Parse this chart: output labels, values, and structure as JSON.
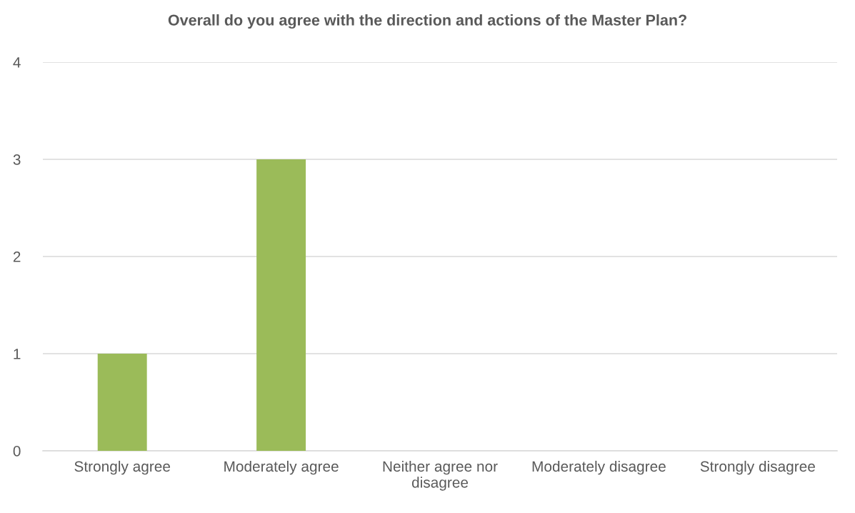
{
  "chart_data": {
    "type": "bar",
    "title": "Overall do you agree with the direction and actions of the Master Plan?",
    "categories": [
      "Strongly agree",
      "Moderately agree",
      "Neither agree nor disagree",
      "Moderately disagree",
      "Strongly disagree"
    ],
    "values": [
      1,
      3,
      0,
      0,
      0
    ],
    "color": "#9bbb59",
    "ylim": [
      0,
      4
    ],
    "yticks": [
      0,
      1,
      2,
      3,
      4
    ],
    "grid": "y",
    "legend": false
  }
}
